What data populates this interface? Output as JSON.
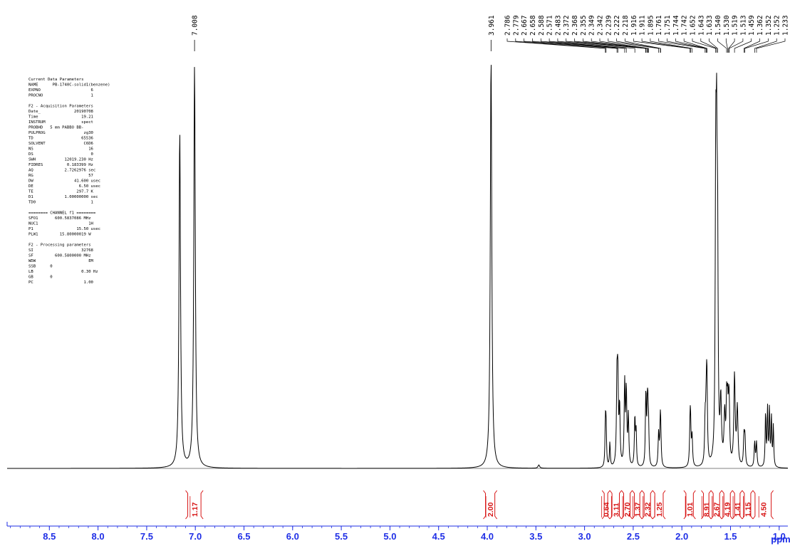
{
  "colors": {
    "spectrum": "#000000",
    "axis": "#1f2fe6",
    "integral": "#d71414",
    "background": "#ffffff"
  },
  "parameters": [
    "Current Data Parameters",
    "NAME      PB-1740C-solid1(benzene)",
    "EXPNO                     6",
    "PROCNO                    1",
    "",
    "F2 - Acquisition Parameters",
    "Date_              20190708",
    "Time                  19.21",
    "INSTRUM               spect",
    "PROBHD   5 mm PABBO BB-",
    "PULPROG                zg30",
    "TD                    65536",
    "SOLVENT                C6D6",
    "NS                       16",
    "DS                        0",
    "SWH            12019.230 Hz",
    "FIDRES          0.183399 Hz",
    "AQ             2.7262976 sec",
    "RG                       57",
    "DW                 41.600 usec",
    "DE                   6.50 usec",
    "TE                  297.7 K",
    "D1             1.00000000 sec",
    "TD0                       1",
    "",
    "======== CHANNEL f1 ========",
    "SFO1       600.5837086 MHz",
    "NUC1                     1H",
    "P1                  15.50 usec",
    "PLW1         15.80000019 W",
    "",
    "F2 - Processing parameters",
    "SI                    32768",
    "SF         600.5800000 MHz",
    "WDW                      EM",
    "SSB      0",
    "LB                    0.30 Hz",
    "GB       0",
    "PC                     1.00"
  ],
  "chart_data": {
    "type": "line",
    "title": "",
    "xlabel": "ppm",
    "ylabel": "",
    "x_reversed": true,
    "xlim": [
      9.0,
      0.5
    ],
    "x_ticks": [
      "8.5",
      "8.0",
      "7.5",
      "7.0",
      "6.5",
      "6.0",
      "5.5",
      "5.0",
      "4.5",
      "4.0",
      "3.5",
      "3.0",
      "2.5",
      "2.0",
      "1.5",
      "1.0"
    ],
    "grid": false,
    "peak_labels_isolated": [
      "7.008",
      "3.961"
    ],
    "peak_labels_cluster": [
      "2.786",
      "2.779",
      "2.667",
      "2.658",
      "2.588",
      "2.571",
      "2.483",
      "2.372",
      "2.368",
      "2.355",
      "2.349",
      "2.342",
      "2.239",
      "2.222",
      "2.218",
      "1.916",
      "1.911",
      "1.895",
      "1.761",
      "1.751",
      "1.744",
      "1.742",
      "1.652",
      "1.643",
      "1.633",
      "1.540",
      "1.530",
      "1.519",
      "1.513",
      "1.459",
      "1.362",
      "1.352",
      "1.252",
      "1.233"
    ],
    "peaks": [
      {
        "ppm": 7.16,
        "height": 0.82,
        "width": 0.009
      },
      {
        "ppm": 7.008,
        "height": 0.98,
        "width": 0.009
      },
      {
        "ppm": 3.961,
        "height": 1.0,
        "width": 0.009
      },
      {
        "ppm": 3.47,
        "height": 0.008,
        "width": 0.01
      },
      {
        "ppm": 2.786,
        "height": 0.1,
        "width": 0.005
      },
      {
        "ppm": 2.779,
        "height": 0.1,
        "width": 0.005
      },
      {
        "ppm": 2.74,
        "height": 0.06,
        "width": 0.005
      },
      {
        "ppm": 2.667,
        "height": 0.2,
        "width": 0.006
      },
      {
        "ppm": 2.658,
        "height": 0.2,
        "width": 0.006
      },
      {
        "ppm": 2.64,
        "height": 0.14,
        "width": 0.006
      },
      {
        "ppm": 2.588,
        "height": 0.2,
        "width": 0.006
      },
      {
        "ppm": 2.571,
        "height": 0.18,
        "width": 0.006
      },
      {
        "ppm": 2.55,
        "height": 0.12,
        "width": 0.006
      },
      {
        "ppm": 2.483,
        "height": 0.12,
        "width": 0.006
      },
      {
        "ppm": 2.47,
        "height": 0.08,
        "width": 0.005
      },
      {
        "ppm": 2.372,
        "height": 0.1,
        "width": 0.005
      },
      {
        "ppm": 2.368,
        "height": 0.1,
        "width": 0.005
      },
      {
        "ppm": 2.355,
        "height": 0.12,
        "width": 0.005
      },
      {
        "ppm": 2.349,
        "height": 0.1,
        "width": 0.005
      },
      {
        "ppm": 2.342,
        "height": 0.08,
        "width": 0.005
      },
      {
        "ppm": 2.239,
        "height": 0.08,
        "width": 0.006
      },
      {
        "ppm": 2.222,
        "height": 0.08,
        "width": 0.006
      },
      {
        "ppm": 2.218,
        "height": 0.07,
        "width": 0.006
      },
      {
        "ppm": 1.916,
        "height": 0.08,
        "width": 0.006
      },
      {
        "ppm": 1.911,
        "height": 0.09,
        "width": 0.006
      },
      {
        "ppm": 1.895,
        "height": 0.07,
        "width": 0.006
      },
      {
        "ppm": 1.761,
        "height": 0.1,
        "width": 0.006
      },
      {
        "ppm": 1.751,
        "height": 0.1,
        "width": 0.006
      },
      {
        "ppm": 1.744,
        "height": 0.12,
        "width": 0.006
      },
      {
        "ppm": 1.742,
        "height": 0.1,
        "width": 0.006
      },
      {
        "ppm": 1.652,
        "height": 0.66,
        "width": 0.006
      },
      {
        "ppm": 1.643,
        "height": 0.62,
        "width": 0.006
      },
      {
        "ppm": 1.633,
        "height": 0.5,
        "width": 0.006
      },
      {
        "ppm": 1.6,
        "height": 0.15,
        "width": 0.008
      },
      {
        "ppm": 1.56,
        "height": 0.12,
        "width": 0.008
      },
      {
        "ppm": 1.54,
        "height": 0.14,
        "width": 0.006
      },
      {
        "ppm": 1.53,
        "height": 0.12,
        "width": 0.006
      },
      {
        "ppm": 1.519,
        "height": 0.1,
        "width": 0.006
      },
      {
        "ppm": 1.513,
        "height": 0.1,
        "width": 0.006
      },
      {
        "ppm": 1.459,
        "height": 0.22,
        "width": 0.008
      },
      {
        "ppm": 1.43,
        "height": 0.14,
        "width": 0.008
      },
      {
        "ppm": 1.362,
        "height": 0.07,
        "width": 0.006
      },
      {
        "ppm": 1.352,
        "height": 0.07,
        "width": 0.006
      },
      {
        "ppm": 1.252,
        "height": 0.06,
        "width": 0.006
      },
      {
        "ppm": 1.233,
        "height": 0.06,
        "width": 0.006
      },
      {
        "ppm": 1.14,
        "height": 0.13,
        "width": 0.005
      },
      {
        "ppm": 1.12,
        "height": 0.14,
        "width": 0.005
      },
      {
        "ppm": 1.1,
        "height": 0.14,
        "width": 0.005
      },
      {
        "ppm": 1.08,
        "height": 0.12,
        "width": 0.005
      },
      {
        "ppm": 1.06,
        "height": 0.1,
        "width": 0.005
      }
    ],
    "integrals": [
      {
        "value": "1.17",
        "from": 7.1,
        "to": 6.92
      },
      {
        "value": "2.00",
        "from": 4.04,
        "to": 3.9
      },
      {
        "value": "0.64",
        "from": 2.82,
        "to": 2.74
      },
      {
        "value": "3.11",
        "from": 2.74,
        "to": 2.62
      },
      {
        "value": "2.70",
        "from": 2.62,
        "to": 2.51
      },
      {
        "value": "1.37",
        "from": 2.51,
        "to": 2.41
      },
      {
        "value": "2.32",
        "from": 2.41,
        "to": 2.3
      },
      {
        "value": "1.25",
        "from": 2.3,
        "to": 2.17
      },
      {
        "value": "1.01",
        "from": 1.98,
        "to": 1.86
      },
      {
        "value": "8.91",
        "from": 1.8,
        "to": 1.7
      },
      {
        "value": "2.67",
        "from": 1.7,
        "to": 1.59
      },
      {
        "value": "4.19",
        "from": 1.59,
        "to": 1.48
      },
      {
        "value": "1.41",
        "from": 1.48,
        "to": 1.38
      },
      {
        "value": "1.15",
        "from": 1.38,
        "to": 1.27
      },
      {
        "value": "4.50",
        "from": 1.27,
        "to": 1.06
      }
    ]
  }
}
